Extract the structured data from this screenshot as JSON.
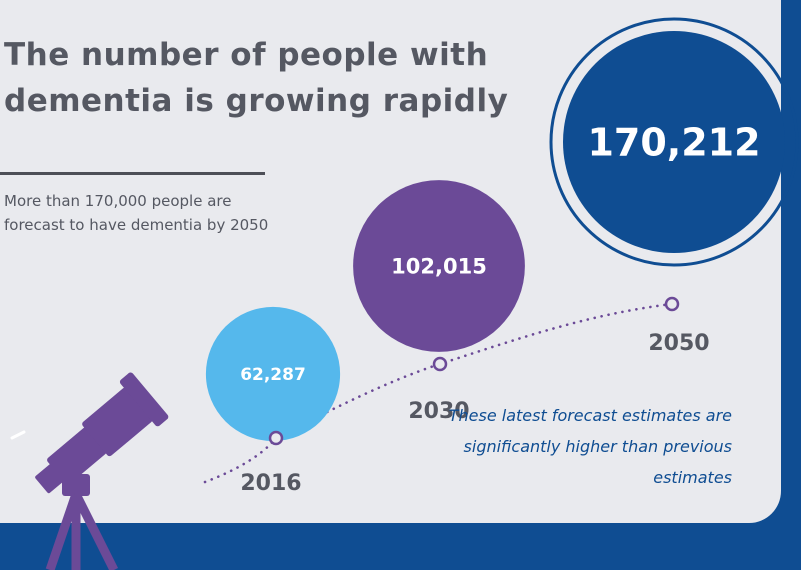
{
  "title": "The number of people with dementia is growing rapidly",
  "subtitle": "More than 170,000 people are forecast to have dementia by 2050",
  "note": "These latest forecast estimates are significantly higher than previous estimates",
  "colors": {
    "panel": "#e9eaee",
    "background": "#0f4d92",
    "text": "#555862",
    "accent_2016": "#55b8ec",
    "accent_2030": "#6b4a97",
    "accent_2050": "#0f4d92",
    "telescope": "#6b4a97"
  },
  "icons": [
    "telescope-icon"
  ],
  "chart_data": {
    "type": "scatter",
    "title": "",
    "xlabel": "",
    "ylabel": "",
    "x": [
      "2016",
      "2030",
      "2050"
    ],
    "values": [
      62287,
      102015,
      170212
    ],
    "value_labels": [
      "62,287",
      "102,015",
      "170,212"
    ],
    "encoding": "bubble area proportional to value, points joined by dotted trend line"
  }
}
